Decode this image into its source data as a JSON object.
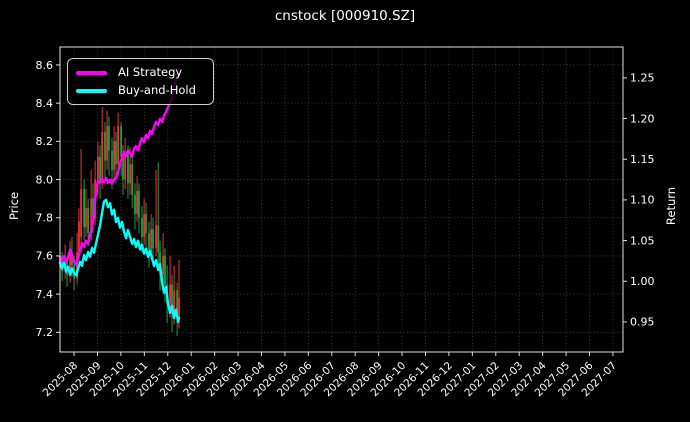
{
  "window": {
    "title": "cnstock [000910.SZ]"
  },
  "legend": {
    "items": [
      {
        "label": "AI Strategy",
        "color": "#ff00ff"
      },
      {
        "label": "Buy-and-Hold",
        "color": "#00ffff"
      }
    ]
  },
  "colors": {
    "background": "#000000",
    "text": "#ffffff",
    "spine": "#e0e0e0",
    "grid": "#9a9a9a",
    "candle_up": "#f92e2e",
    "candle_down": "#12a846",
    "ai_strategy": "#ff00ff",
    "buy_and_hold": "#00ffff"
  },
  "chart_data": {
    "type": "candlestick+line",
    "title": "cnstock [000910.SZ]",
    "grid": true,
    "legend_position": "upper left",
    "x_axis": {
      "tick_labels": [
        "2025-08",
        "2025-09",
        "2025-10",
        "2025-11",
        "2025-12",
        "2026-01",
        "2026-02",
        "2026-03",
        "2026-04",
        "2026-05",
        "2026-06",
        "2026-07",
        "2026-08",
        "2026-09",
        "2026-10",
        "2026-11",
        "2026-12",
        "2027-01",
        "2027-02",
        "2027-03",
        "2027-04",
        "2027-05",
        "2027-06",
        "2027-07"
      ],
      "rotation": 45,
      "range_months": [
        -0.6,
        23.43
      ]
    },
    "y_left": {
      "label": "Price",
      "ticks": [
        8.6,
        8.4,
        8.2,
        8.0,
        7.8,
        7.6,
        7.4,
        7.2
      ],
      "range": [
        7.097,
        8.694
      ]
    },
    "y_right": {
      "label": "Return",
      "ticks": [
        1.25,
        1.2,
        1.15,
        1.1,
        1.05,
        1.0,
        0.95
      ],
      "range": [
        0.913,
        1.288
      ]
    },
    "series": [
      {
        "name": "AI Strategy",
        "axis": "right",
        "color": "#ff00ff",
        "line_width": 2.4,
        "points": [
          [
            -0.6,
            1.029
          ],
          [
            -0.51,
            1.025
          ],
          [
            -0.43,
            1.031
          ],
          [
            -0.34,
            1.024
          ],
          [
            -0.26,
            1.029
          ],
          [
            -0.17,
            1.039
          ],
          [
            -0.09,
            1.032
          ],
          [
            0.0,
            1.024
          ],
          [
            0.09,
            1.02
          ],
          [
            0.17,
            1.029
          ],
          [
            0.26,
            1.037
          ],
          [
            0.34,
            1.047
          ],
          [
            0.43,
            1.042
          ],
          [
            0.51,
            1.05
          ],
          [
            0.6,
            1.046
          ],
          [
            0.68,
            1.057
          ],
          [
            0.77,
            1.066
          ],
          [
            0.85,
            1.082
          ],
          [
            0.9,
            1.1
          ],
          [
            0.94,
            1.109
          ],
          [
            0.98,
            1.118
          ],
          [
            1.02,
            1.123
          ],
          [
            1.11,
            1.121
          ],
          [
            1.2,
            1.126
          ],
          [
            1.28,
            1.122
          ],
          [
            1.37,
            1.127
          ],
          [
            1.45,
            1.121
          ],
          [
            1.54,
            1.125
          ],
          [
            1.62,
            1.12
          ],
          [
            1.71,
            1.125
          ],
          [
            1.79,
            1.127
          ],
          [
            1.88,
            1.134
          ],
          [
            1.96,
            1.145
          ],
          [
            2.05,
            1.152
          ],
          [
            2.13,
            1.159
          ],
          [
            2.22,
            1.154
          ],
          [
            2.3,
            1.161
          ],
          [
            2.39,
            1.157
          ],
          [
            2.48,
            1.153
          ],
          [
            2.56,
            1.163
          ],
          [
            2.65,
            1.166
          ],
          [
            2.73,
            1.161
          ],
          [
            2.82,
            1.17
          ],
          [
            2.9,
            1.176
          ],
          [
            2.99,
            1.171
          ],
          [
            3.07,
            1.18
          ],
          [
            3.16,
            1.176
          ],
          [
            3.24,
            1.185
          ],
          [
            3.33,
            1.181
          ],
          [
            3.41,
            1.19
          ],
          [
            3.5,
            1.196
          ],
          [
            3.59,
            1.192
          ],
          [
            3.67,
            1.2
          ],
          [
            3.76,
            1.196
          ],
          [
            3.84,
            1.204
          ],
          [
            3.93,
            1.208
          ],
          [
            4.01,
            1.214
          ],
          [
            4.1,
            1.219
          ],
          [
            4.18,
            1.225
          ],
          [
            4.27,
            1.238
          ],
          [
            4.35,
            1.249
          ],
          [
            4.44,
            1.255
          ],
          [
            4.48,
            1.257
          ]
        ]
      },
      {
        "name": "Buy-and-Hold",
        "axis": "right",
        "color": "#00ffff",
        "line_width": 2.4,
        "points": [
          [
            -0.6,
            1.023
          ],
          [
            -0.51,
            1.016
          ],
          [
            -0.43,
            1.023
          ],
          [
            -0.34,
            1.012
          ],
          [
            -0.26,
            1.018
          ],
          [
            -0.17,
            1.008
          ],
          [
            -0.09,
            1.016
          ],
          [
            0.0,
            1.01
          ],
          [
            0.09,
            1.007
          ],
          [
            0.17,
            1.015
          ],
          [
            0.26,
            1.024
          ],
          [
            0.34,
            1.019
          ],
          [
            0.43,
            1.032
          ],
          [
            0.51,
            1.026
          ],
          [
            0.6,
            1.036
          ],
          [
            0.68,
            1.03
          ],
          [
            0.77,
            1.041
          ],
          [
            0.85,
            1.035
          ],
          [
            0.94,
            1.047
          ],
          [
            1.02,
            1.057
          ],
          [
            1.11,
            1.069
          ],
          [
            1.2,
            1.085
          ],
          [
            1.28,
            1.098
          ],
          [
            1.37,
            1.1
          ],
          [
            1.45,
            1.091
          ],
          [
            1.54,
            1.096
          ],
          [
            1.62,
            1.082
          ],
          [
            1.71,
            1.088
          ],
          [
            1.79,
            1.073
          ],
          [
            1.88,
            1.078
          ],
          [
            1.96,
            1.066
          ],
          [
            2.05,
            1.073
          ],
          [
            2.13,
            1.061
          ],
          [
            2.22,
            1.053
          ],
          [
            2.3,
            1.063
          ],
          [
            2.39,
            1.054
          ],
          [
            2.48,
            1.046
          ],
          [
            2.56,
            1.052
          ],
          [
            2.65,
            1.042
          ],
          [
            2.73,
            1.05
          ],
          [
            2.82,
            1.039
          ],
          [
            2.9,
            1.045
          ],
          [
            2.99,
            1.034
          ],
          [
            3.07,
            1.04
          ],
          [
            3.16,
            1.03
          ],
          [
            3.24,
            1.037
          ],
          [
            3.33,
            1.028
          ],
          [
            3.41,
            1.019
          ],
          [
            3.5,
            1.026
          ],
          [
            3.59,
            1.014
          ],
          [
            3.67,
            1.021
          ],
          [
            3.76,
            0.998
          ],
          [
            3.84,
            0.986
          ],
          [
            3.93,
            0.993
          ],
          [
            4.01,
            0.973
          ],
          [
            4.1,
            0.961
          ],
          [
            4.18,
            0.97
          ],
          [
            4.27,
            0.955
          ],
          [
            4.35,
            0.965
          ],
          [
            4.44,
            0.95
          ],
          [
            4.48,
            0.955
          ]
        ]
      }
    ],
    "candles": {
      "up_color": "#f92e2e",
      "down_color": "#12a846",
      "ohlc_m_o_h_l_c": [
        [
          -0.6,
          7.55,
          7.64,
          7.5,
          7.6
        ],
        [
          -0.51,
          7.6,
          7.62,
          7.47,
          7.52
        ],
        [
          -0.38,
          7.52,
          7.66,
          7.48,
          7.58
        ],
        [
          -0.3,
          7.58,
          7.6,
          7.44,
          7.5
        ],
        [
          -0.17,
          7.5,
          7.68,
          7.46,
          7.62
        ],
        [
          -0.09,
          7.62,
          7.7,
          7.49,
          7.55
        ],
        [
          0.0,
          7.55,
          7.6,
          7.42,
          7.48
        ],
        [
          0.13,
          7.48,
          7.72,
          7.45,
          7.62
        ],
        [
          0.21,
          7.62,
          7.85,
          7.58,
          7.78
        ],
        [
          0.3,
          7.7,
          8.16,
          7.65,
          7.95
        ],
        [
          0.43,
          7.95,
          8.0,
          7.68,
          7.75
        ],
        [
          0.51,
          7.75,
          7.95,
          7.7,
          7.85
        ],
        [
          0.6,
          7.85,
          7.9,
          7.65,
          7.72
        ],
        [
          0.73,
          7.72,
          8.05,
          7.68,
          7.9
        ],
        [
          0.81,
          7.9,
          7.98,
          7.72,
          7.8
        ],
        [
          0.9,
          7.8,
          8.1,
          7.76,
          8.0
        ],
        [
          1.02,
          8.0,
          8.2,
          7.92,
          8.12
        ],
        [
          1.11,
          8.12,
          8.18,
          7.9,
          7.98
        ],
        [
          1.2,
          7.98,
          8.38,
          7.95,
          8.25
        ],
        [
          1.32,
          8.25,
          8.3,
          8.0,
          8.1
        ],
        [
          1.41,
          8.1,
          8.36,
          8.05,
          8.28
        ],
        [
          1.49,
          8.28,
          8.33,
          8.02,
          8.15
        ],
        [
          1.62,
          8.15,
          8.22,
          7.95,
          8.05
        ],
        [
          1.71,
          8.05,
          8.28,
          8.0,
          8.2
        ],
        [
          1.79,
          8.2,
          8.25,
          7.98,
          8.08
        ],
        [
          1.88,
          8.08,
          8.35,
          8.04,
          8.28
        ],
        [
          2.01,
          8.28,
          8.3,
          8.02,
          8.12
        ],
        [
          2.09,
          8.12,
          8.18,
          7.92,
          8.0
        ],
        [
          2.18,
          8.0,
          8.22,
          7.95,
          8.14
        ],
        [
          2.3,
          8.14,
          8.18,
          7.9,
          7.98
        ],
        [
          2.39,
          7.98,
          8.17,
          7.92,
          8.08
        ],
        [
          2.48,
          8.08,
          8.12,
          7.85,
          7.92
        ],
        [
          2.6,
          7.92,
          7.98,
          7.74,
          7.82
        ],
        [
          2.69,
          7.82,
          8.02,
          7.78,
          7.94
        ],
        [
          2.77,
          7.94,
          7.98,
          7.72,
          7.8
        ],
        [
          2.9,
          7.8,
          7.86,
          7.62,
          7.7
        ],
        [
          2.99,
          7.7,
          7.9,
          7.66,
          7.82
        ],
        [
          3.07,
          7.82,
          7.88,
          7.64,
          7.72
        ],
        [
          3.2,
          7.72,
          7.78,
          7.54,
          7.62
        ],
        [
          3.29,
          7.62,
          7.82,
          7.58,
          7.74
        ],
        [
          3.37,
          7.74,
          7.8,
          7.56,
          7.64
        ],
        [
          3.5,
          7.64,
          8.05,
          7.6,
          7.76
        ],
        [
          3.59,
          7.76,
          8.09,
          7.55,
          7.62
        ],
        [
          3.67,
          7.62,
          7.68,
          7.42,
          7.5
        ],
        [
          3.8,
          7.5,
          7.72,
          7.45,
          7.6
        ],
        [
          3.88,
          7.6,
          7.64,
          7.36,
          7.45
        ],
        [
          3.97,
          7.45,
          7.55,
          7.25,
          7.35
        ],
        [
          4.1,
          7.35,
          7.6,
          7.28,
          7.45
        ],
        [
          4.18,
          7.45,
          7.5,
          7.2,
          7.3
        ],
        [
          4.27,
          7.3,
          7.55,
          7.24,
          7.42
        ],
        [
          4.4,
          7.42,
          7.46,
          7.18,
          7.28
        ],
        [
          4.48,
          7.28,
          7.58,
          7.22,
          7.38
        ]
      ]
    }
  }
}
